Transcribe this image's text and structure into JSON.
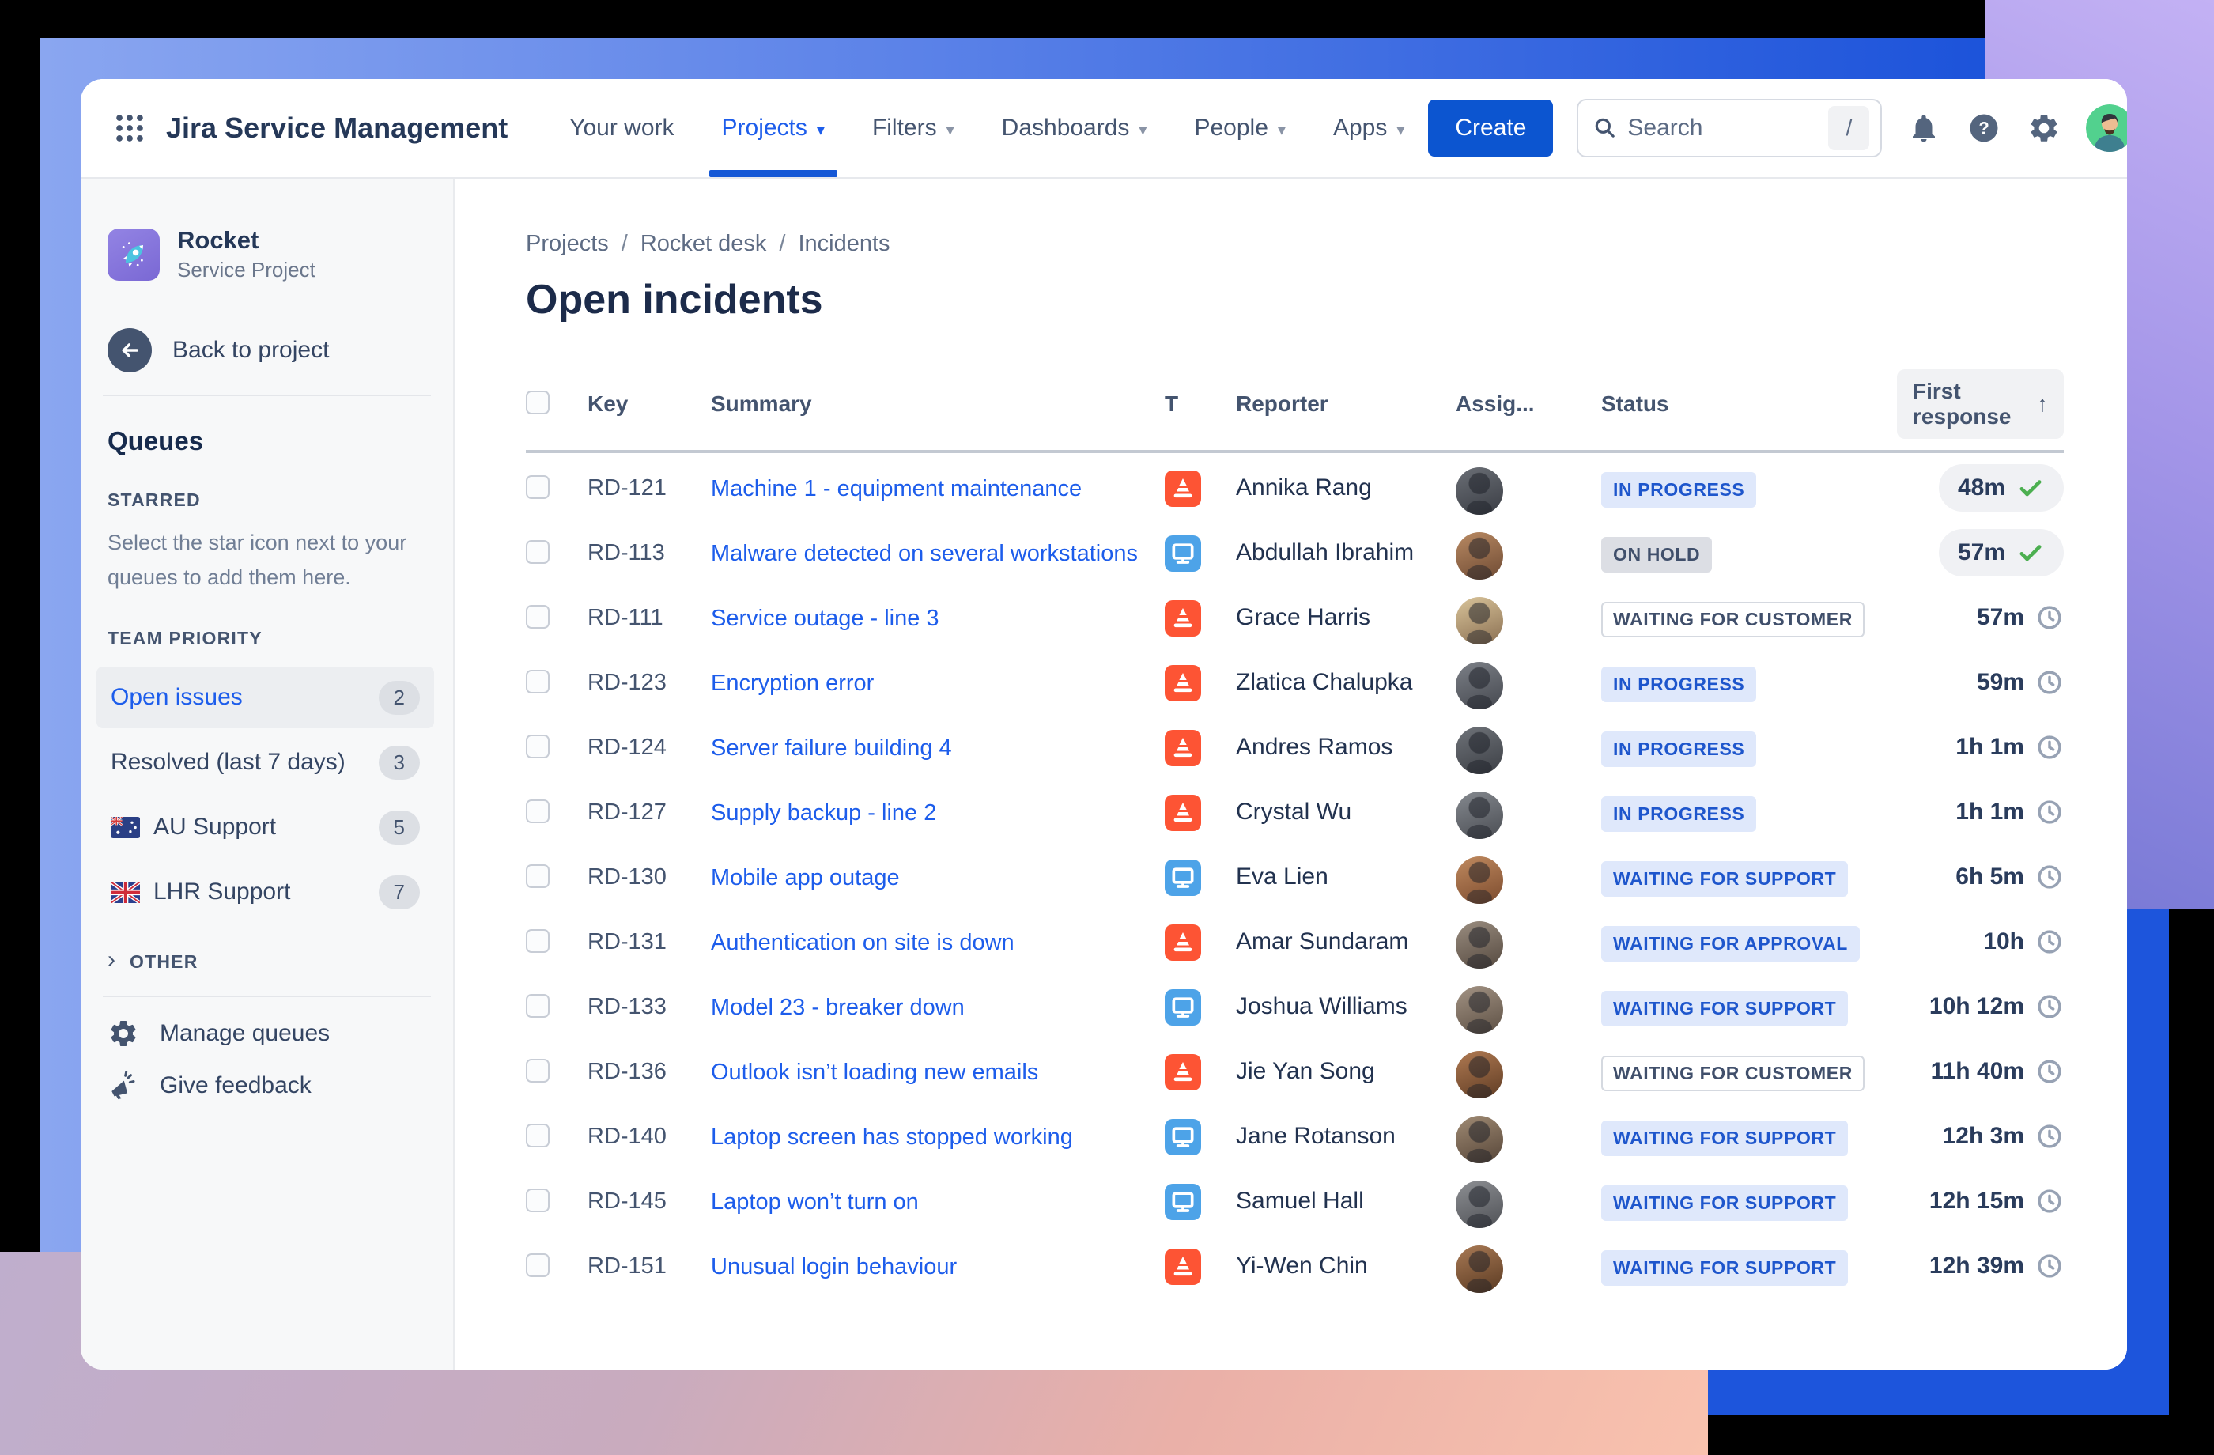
{
  "colors": {
    "accent_blue": "#1d5deb",
    "create_button": "#0c55d0",
    "incident_type": "#fd5434",
    "request_type": "#4da3e8",
    "status_blue_bg": "#dfe8fb",
    "status_blue_text": "#1e56cc",
    "status_gray_bg": "#dcdee4",
    "check_green": "#4CAF50",
    "band_blue_left": "#8aa6f0",
    "band_blue_right": "#1c53da",
    "purple_strip": "#a395e8",
    "pink_strip": "#f9c2ae"
  },
  "icons": {
    "caret_down": "▾",
    "sort_arrow": "↑",
    "chevron_right": "›",
    "breadcrumb_separator": "/"
  },
  "topnav": {
    "brand": "Jira Service Management",
    "items": [
      {
        "label": "Your work",
        "caret": false,
        "active": false
      },
      {
        "label": "Projects",
        "caret": true,
        "active": true
      },
      {
        "label": "Filters",
        "caret": true,
        "active": false
      },
      {
        "label": "Dashboards",
        "caret": true,
        "active": false
      },
      {
        "label": "People",
        "caret": true,
        "active": false
      },
      {
        "label": "Apps",
        "caret": true,
        "active": false
      }
    ],
    "create_label": "Create",
    "search_placeholder": "Search",
    "search_shortcut": "/"
  },
  "sidebar": {
    "project_name": "Rocket",
    "project_type": "Service Project",
    "back_label": "Back to project",
    "queues_title": "Queues",
    "starred_title": "STARRED",
    "starred_hint": "Select the star icon next to your queues to add them here.",
    "team_priority_title": "TEAM PRIORITY",
    "items": [
      {
        "label": "Open issues",
        "count": "2",
        "selected": true,
        "flag": null
      },
      {
        "label": "Resolved (last 7 days)",
        "count": "3",
        "selected": false,
        "flag": null
      },
      {
        "label": "AU Support",
        "count": "5",
        "selected": false,
        "flag": "au"
      },
      {
        "label": "LHR Support",
        "count": "7",
        "selected": false,
        "flag": "uk"
      }
    ],
    "other_label": "OTHER",
    "manage_label": "Manage queues",
    "feedback_label": "Give feedback"
  },
  "main": {
    "breadcrumb": [
      "Projects",
      "Rocket desk",
      "Incidents"
    ],
    "title": "Open incidents",
    "table": {
      "columns": [
        "Key",
        "Summary",
        "T",
        "Reporter",
        "Assig...",
        "Status",
        "First response"
      ],
      "sort_column": "First response",
      "rows": [
        {
          "key": "RD-121",
          "summary": "Machine 1 - equipment maintenance",
          "type": "incident",
          "reporter": "Annika Rang",
          "status": "IN PROGRESS",
          "status_variant": "blue",
          "response": "48m",
          "response_icon": "check",
          "response_pill": true,
          "avatar": [
            "#6b6f76",
            "#3a3d44"
          ]
        },
        {
          "key": "RD-113",
          "summary": "Malware detected on several workstations",
          "type": "request",
          "reporter": "Abdullah Ibrahim",
          "status": "ON HOLD",
          "status_variant": "gray",
          "response": "57m",
          "response_icon": "check",
          "response_pill": true,
          "avatar": [
            "#b98a63",
            "#6e4a33"
          ]
        },
        {
          "key": "RD-111",
          "summary": "Service outage - line 3",
          "type": "incident",
          "reporter": "Grace Harris",
          "status": "WAITING FOR CUSTOMER",
          "status_variant": "outline",
          "response": "57m",
          "response_icon": "clock",
          "response_pill": false,
          "avatar": [
            "#d9c49a",
            "#8a6f52"
          ]
        },
        {
          "key": "RD-123",
          "summary": "Encryption error",
          "type": "incident",
          "reporter": "Zlatica Chalupka",
          "status": "IN PROGRESS",
          "status_variant": "blue",
          "response": "59m",
          "response_icon": "clock",
          "response_pill": false,
          "avatar": [
            "#7c8087",
            "#45484f"
          ]
        },
        {
          "key": "RD-124",
          "summary": "Server failure building 4",
          "type": "incident",
          "reporter": "Andres Ramos",
          "status": "IN PROGRESS",
          "status_variant": "blue",
          "response": "1h 1m",
          "response_icon": "clock",
          "response_pill": false,
          "avatar": [
            "#6f7379",
            "#3c3f45"
          ]
        },
        {
          "key": "RD-127",
          "summary": "Supply backup - line 2",
          "type": "incident",
          "reporter": "Crystal Wu",
          "status": "IN PROGRESS",
          "status_variant": "blue",
          "response": "1h 1m",
          "response_icon": "clock",
          "response_pill": false,
          "avatar": [
            "#85898f",
            "#4a4d53"
          ]
        },
        {
          "key": "RD-130",
          "summary": "Mobile app outage",
          "type": "request",
          "reporter": "Eva Lien",
          "status": "WAITING FOR SUPPORT",
          "status_variant": "blue",
          "response": "6h 5m",
          "response_icon": "clock",
          "response_pill": false,
          "avatar": [
            "#c08a5f",
            "#7c4b2e"
          ]
        },
        {
          "key": "RD-131",
          "summary": "Authentication on site is down",
          "type": "incident",
          "reporter": "Amar Sundaram",
          "status": "WAITING FOR APPROVAL",
          "status_variant": "blue",
          "response": "10h",
          "response_icon": "clock",
          "response_pill": false,
          "avatar": [
            "#9a8d80",
            "#55493f"
          ]
        },
        {
          "key": "RD-133",
          "summary": "Model 23 - breaker down",
          "type": "request",
          "reporter": "Joshua Williams",
          "status": "WAITING FOR SUPPORT",
          "status_variant": "blue",
          "response": "10h 12m",
          "response_icon": "clock",
          "response_pill": false,
          "avatar": [
            "#a39384",
            "#5d5044"
          ]
        },
        {
          "key": "RD-136",
          "summary": "Outlook isn’t loading new emails",
          "type": "incident",
          "reporter": "Jie Yan Song",
          "status": "WAITING FOR CUSTOMER",
          "status_variant": "outline",
          "response": "11h 40m",
          "response_icon": "clock",
          "response_pill": false,
          "avatar": [
            "#b07a52",
            "#5f3c24"
          ]
        },
        {
          "key": "RD-140",
          "summary": "Laptop screen has stopped working",
          "type": "request",
          "reporter": "Jane Rotanson",
          "status": "WAITING FOR SUPPORT",
          "status_variant": "blue",
          "response": "12h 3m",
          "response_icon": "clock",
          "response_pill": false,
          "avatar": [
            "#a08b74",
            "#564538"
          ]
        },
        {
          "key": "RD-145",
          "summary": "Laptop won’t turn on",
          "type": "request",
          "reporter": "Samuel Hall",
          "status": "WAITING FOR SUPPORT",
          "status_variant": "blue",
          "response": "12h 15m",
          "response_icon": "clock",
          "response_pill": false,
          "avatar": [
            "#8d8f93",
            "#4f5156"
          ]
        },
        {
          "key": "RD-151",
          "summary": "Unusual login behaviour",
          "type": "incident",
          "reporter": "Yi-Wen Chin",
          "status": "WAITING FOR SUPPORT",
          "status_variant": "blue",
          "response": "12h 39m",
          "response_icon": "clock",
          "response_pill": false,
          "avatar": [
            "#a97a55",
            "#5a3a22"
          ]
        }
      ]
    }
  }
}
